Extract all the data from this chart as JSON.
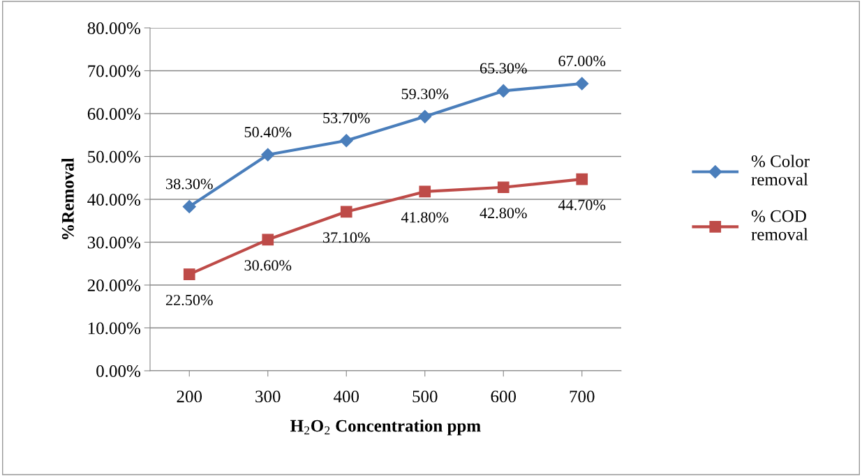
{
  "chart_data": {
    "type": "line",
    "xlabel": "H$_{2}$O$_{2}$ Concentration ppm",
    "ylabel": "%Removal",
    "categories": [
      "200",
      "300",
      "400",
      "500",
      "600",
      "700"
    ],
    "series": [
      {
        "name": "% Color removal",
        "color": "#4a7ebb",
        "marker": "diamond",
        "values": [
          38.3,
          50.4,
          53.7,
          59.3,
          65.3,
          67.0
        ],
        "value_labels": [
          "38.30%",
          "50.40%",
          "53.70%",
          "59.30%",
          "65.30%",
          "67.00%"
        ]
      },
      {
        "name": "% COD removal",
        "color": "#be4b48",
        "marker": "square",
        "values": [
          22.5,
          30.6,
          37.1,
          41.8,
          42.8,
          44.7
        ],
        "value_labels": [
          "22.50%",
          "30.60%",
          "37.10%",
          "41.80%",
          "42.80%",
          "44.70%"
        ]
      }
    ],
    "ylim": [
      0,
      80
    ],
    "yticks": [
      {
        "value": 0,
        "label": "0.00%"
      },
      {
        "value": 10,
        "label": "10.00%"
      },
      {
        "value": 20,
        "label": "20.00%"
      },
      {
        "value": 30,
        "label": "30.00%"
      },
      {
        "value": 40,
        "label": "40.00%"
      },
      {
        "value": 50,
        "label": "50.00%"
      },
      {
        "value": 60,
        "label": "60.00%"
      },
      {
        "value": 70,
        "label": "70.00%"
      },
      {
        "value": 80,
        "label": "80.00%"
      }
    ],
    "grid": "y",
    "legend": "right",
    "line_style": "solid"
  }
}
